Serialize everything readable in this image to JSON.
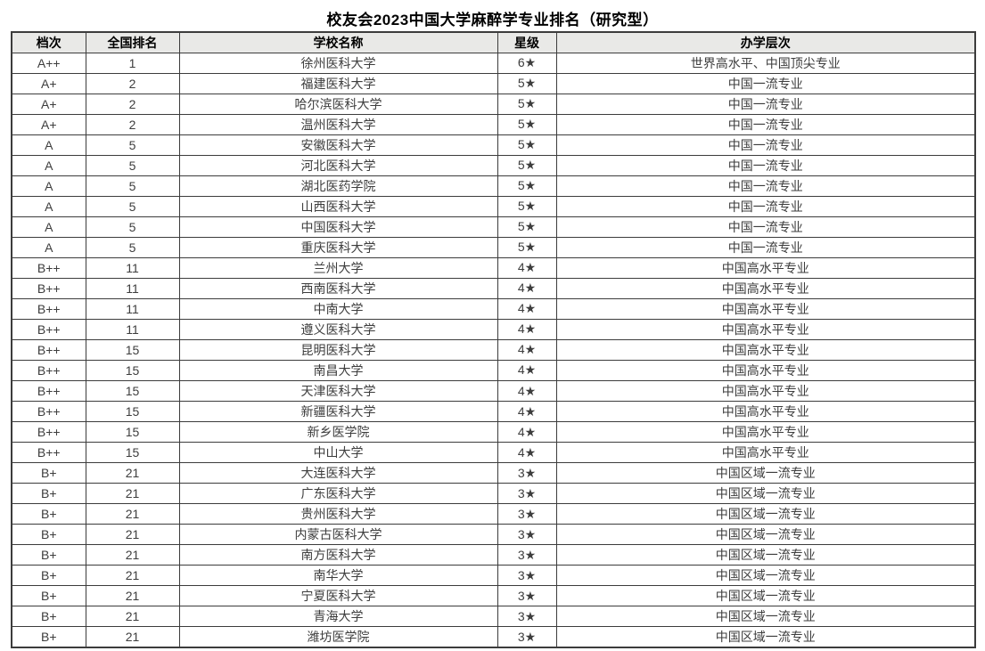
{
  "page": {
    "title": "校友会2023中国大学麻醉学专业排名（研究型）"
  },
  "colors": {
    "header_bg": "#e9e9e7",
    "border": "#3c3c3c",
    "body_text": "#3d3d3d",
    "title_text": "#000000"
  },
  "table": {
    "columns": [
      {
        "key": "tier",
        "label": "档次"
      },
      {
        "key": "rank",
        "label": "全国排名"
      },
      {
        "key": "school",
        "label": "学校名称"
      },
      {
        "key": "stars",
        "label": "星级"
      },
      {
        "key": "level",
        "label": "办学层次"
      }
    ],
    "rows": [
      [
        "A++",
        "1",
        "徐州医科大学",
        "6★",
        "世界高水平、中国顶尖专业"
      ],
      [
        "A+",
        "2",
        "福建医科大学",
        "5★",
        "中国一流专业"
      ],
      [
        "A+",
        "2",
        "哈尔滨医科大学",
        "5★",
        "中国一流专业"
      ],
      [
        "A+",
        "2",
        "温州医科大学",
        "5★",
        "中国一流专业"
      ],
      [
        "A",
        "5",
        "安徽医科大学",
        "5★",
        "中国一流专业"
      ],
      [
        "A",
        "5",
        "河北医科大学",
        "5★",
        "中国一流专业"
      ],
      [
        "A",
        "5",
        "湖北医药学院",
        "5★",
        "中国一流专业"
      ],
      [
        "A",
        "5",
        "山西医科大学",
        "5★",
        "中国一流专业"
      ],
      [
        "A",
        "5",
        "中国医科大学",
        "5★",
        "中国一流专业"
      ],
      [
        "A",
        "5",
        "重庆医科大学",
        "5★",
        "中国一流专业"
      ],
      [
        "B++",
        "11",
        "兰州大学",
        "4★",
        "中国高水平专业"
      ],
      [
        "B++",
        "11",
        "西南医科大学",
        "4★",
        "中国高水平专业"
      ],
      [
        "B++",
        "11",
        "中南大学",
        "4★",
        "中国高水平专业"
      ],
      [
        "B++",
        "11",
        "遵义医科大学",
        "4★",
        "中国高水平专业"
      ],
      [
        "B++",
        "15",
        "昆明医科大学",
        "4★",
        "中国高水平专业"
      ],
      [
        "B++",
        "15",
        "南昌大学",
        "4★",
        "中国高水平专业"
      ],
      [
        "B++",
        "15",
        "天津医科大学",
        "4★",
        "中国高水平专业"
      ],
      [
        "B++",
        "15",
        "新疆医科大学",
        "4★",
        "中国高水平专业"
      ],
      [
        "B++",
        "15",
        "新乡医学院",
        "4★",
        "中国高水平专业"
      ],
      [
        "B++",
        "15",
        "中山大学",
        "4★",
        "中国高水平专业"
      ],
      [
        "B+",
        "21",
        "大连医科大学",
        "3★",
        "中国区域一流专业"
      ],
      [
        "B+",
        "21",
        "广东医科大学",
        "3★",
        "中国区域一流专业"
      ],
      [
        "B+",
        "21",
        "贵州医科大学",
        "3★",
        "中国区域一流专业"
      ],
      [
        "B+",
        "21",
        "内蒙古医科大学",
        "3★",
        "中国区域一流专业"
      ],
      [
        "B+",
        "21",
        "南方医科大学",
        "3★",
        "中国区域一流专业"
      ],
      [
        "B+",
        "21",
        "南华大学",
        "3★",
        "中国区域一流专业"
      ],
      [
        "B+",
        "21",
        "宁夏医科大学",
        "3★",
        "中国区域一流专业"
      ],
      [
        "B+",
        "21",
        "青海大学",
        "3★",
        "中国区域一流专业"
      ],
      [
        "B+",
        "21",
        "潍坊医学院",
        "3★",
        "中国区域一流专业"
      ]
    ]
  }
}
